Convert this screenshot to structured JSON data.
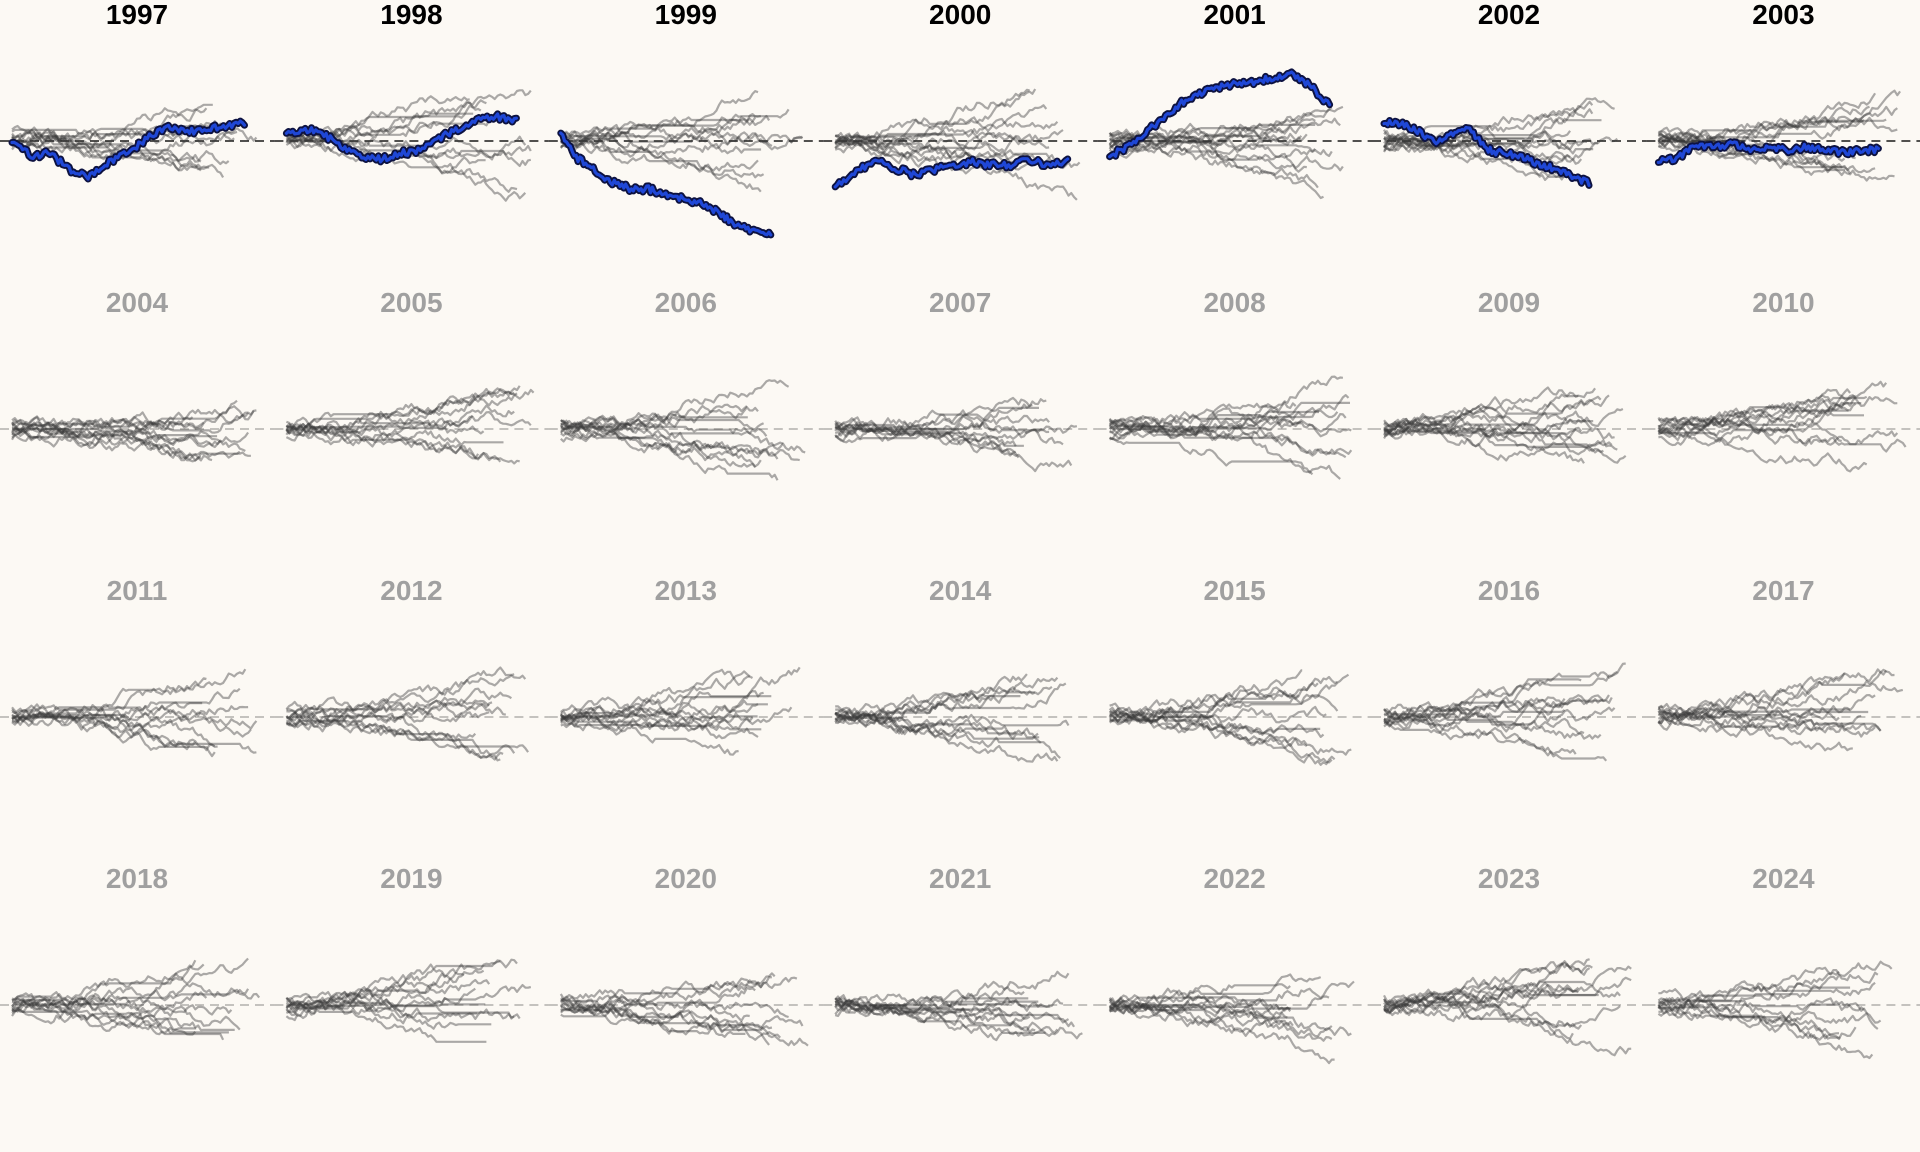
{
  "chart_data": {
    "type": "line",
    "title": "",
    "xlabel": "",
    "ylabel": "",
    "facet_rows": 4,
    "facet_cols": 7,
    "baseline_y": 0,
    "ylim": [
      -3.5,
      3.5
    ],
    "grid": false,
    "legend": "none",
    "colors": {
      "background": "#fcf9f4",
      "highlight": "#1f47d6",
      "highlight_outline": "#0d1240",
      "other_lines": "#3a3a3a",
      "active_title": "#000000",
      "inactive_title": "#a0a0a0",
      "baseline": "#000000"
    },
    "panels": [
      {
        "year": "1997",
        "active": true,
        "highlight": [
          0,
          -0.5,
          -0.4,
          -1.0,
          -1.2,
          -0.7,
          -0.4,
          0.1,
          0.5,
          0.3,
          0.4,
          0.5,
          0.6
        ],
        "hl_end": 0.93,
        "seed": 11,
        "n": 12,
        "spread": 2.0
      },
      {
        "year": "1998",
        "active": true,
        "highlight": [
          0.3,
          0.4,
          0.2,
          -0.2,
          -0.5,
          -0.6,
          -0.4,
          -0.3,
          0.1,
          0.4,
          0.7,
          0.8,
          0.7
        ],
        "hl_end": 0.92,
        "seed": 22,
        "n": 12,
        "spread": 2.6
      },
      {
        "year": "1999",
        "active": true,
        "highlight": [
          0.3,
          -0.6,
          -1.0,
          -1.4,
          -1.6,
          -1.6,
          -1.8,
          -1.9,
          -2.1,
          -2.4,
          -2.8,
          -3.0,
          -3.1
        ],
        "hl_end": 0.84,
        "seed": 33,
        "n": 12,
        "spread": 2.4
      },
      {
        "year": "2000",
        "active": true,
        "highlight": [
          -1.5,
          -1.1,
          -0.6,
          -0.9,
          -1.1,
          -1.0,
          -0.8,
          -0.7,
          -0.8,
          -0.8,
          -0.6,
          -0.8,
          -0.7
        ],
        "hl_end": 0.93,
        "seed": 44,
        "n": 13,
        "spread": 2.6
      },
      {
        "year": "2001",
        "active": true,
        "highlight": [
          -0.5,
          -0.2,
          0.3,
          0.8,
          1.3,
          1.6,
          1.8,
          1.9,
          2.0,
          2.1,
          2.2,
          1.8,
          1.2
        ],
        "hl_end": 0.88,
        "seed": 55,
        "n": 14,
        "spread": 2.4
      },
      {
        "year": "2002",
        "active": true,
        "highlight": [
          0.6,
          0.6,
          0.3,
          0.0,
          0.2,
          0.4,
          -0.3,
          -0.4,
          -0.5,
          -0.8,
          -0.9,
          -1.2,
          -1.4
        ],
        "hl_end": 0.82,
        "seed": 66,
        "n": 14,
        "spread": 2.2
      },
      {
        "year": "2003",
        "active": true,
        "highlight": [
          -0.7,
          -0.6,
          -0.1,
          -0.2,
          -0.1,
          -0.3,
          -0.2,
          -0.3,
          -0.2,
          -0.3,
          -0.4,
          -0.3,
          -0.3
        ],
        "hl_end": 0.88,
        "seed": 77,
        "n": 14,
        "spread": 2.0
      },
      {
        "year": "2004",
        "active": false,
        "highlight": [],
        "hl_end": 0.9,
        "seed": 101,
        "n": 14,
        "spread": 1.8
      },
      {
        "year": "2005",
        "active": false,
        "highlight": [],
        "hl_end": 0.9,
        "seed": 102,
        "n": 12,
        "spread": 2.0
      },
      {
        "year": "2006",
        "active": false,
        "highlight": [],
        "hl_end": 0.9,
        "seed": 103,
        "n": 13,
        "spread": 2.6
      },
      {
        "year": "2007",
        "active": false,
        "highlight": [],
        "hl_end": 0.9,
        "seed": 104,
        "n": 12,
        "spread": 2.0
      },
      {
        "year": "2008",
        "active": false,
        "highlight": [],
        "hl_end": 0.9,
        "seed": 105,
        "n": 14,
        "spread": 2.6
      },
      {
        "year": "2009",
        "active": false,
        "highlight": [],
        "hl_end": 0.9,
        "seed": 106,
        "n": 14,
        "spread": 1.8
      },
      {
        "year": "2010",
        "active": false,
        "highlight": [],
        "hl_end": 0.9,
        "seed": 107,
        "n": 13,
        "spread": 2.0
      },
      {
        "year": "2011",
        "active": false,
        "highlight": [],
        "hl_end": 0.9,
        "seed": 108,
        "n": 12,
        "spread": 2.4
      },
      {
        "year": "2012",
        "active": false,
        "highlight": [],
        "hl_end": 0.9,
        "seed": 109,
        "n": 12,
        "spread": 2.4
      },
      {
        "year": "2013",
        "active": false,
        "highlight": [],
        "hl_end": 0.9,
        "seed": 110,
        "n": 13,
        "spread": 2.0
      },
      {
        "year": "2014",
        "active": false,
        "highlight": [],
        "hl_end": 0.9,
        "seed": 111,
        "n": 13,
        "spread": 2.0
      },
      {
        "year": "2015",
        "active": false,
        "highlight": [],
        "hl_end": 0.9,
        "seed": 112,
        "n": 13,
        "spread": 2.0
      },
      {
        "year": "2016",
        "active": false,
        "highlight": [],
        "hl_end": 0.9,
        "seed": 113,
        "n": 13,
        "spread": 2.2
      },
      {
        "year": "2017",
        "active": false,
        "highlight": [],
        "hl_end": 0.9,
        "seed": 114,
        "n": 13,
        "spread": 2.2
      },
      {
        "year": "2018",
        "active": false,
        "highlight": [],
        "hl_end": 0.9,
        "seed": 115,
        "n": 13,
        "spread": 2.2
      },
      {
        "year": "2019",
        "active": false,
        "highlight": [],
        "hl_end": 0.9,
        "seed": 116,
        "n": 13,
        "spread": 2.2
      },
      {
        "year": "2020",
        "active": false,
        "highlight": [],
        "hl_end": 0.9,
        "seed": 117,
        "n": 12,
        "spread": 2.4
      },
      {
        "year": "2021",
        "active": false,
        "highlight": [],
        "hl_end": 0.9,
        "seed": 118,
        "n": 13,
        "spread": 2.4
      },
      {
        "year": "2022",
        "active": false,
        "highlight": [],
        "hl_end": 0.9,
        "seed": 119,
        "n": 13,
        "spread": 2.4
      },
      {
        "year": "2023",
        "active": false,
        "highlight": [],
        "hl_end": 0.9,
        "seed": 120,
        "n": 13,
        "spread": 2.4
      },
      {
        "year": "2024",
        "active": false,
        "highlight": [],
        "hl_end": 0.9,
        "seed": 121,
        "n": 12,
        "spread": 2.2
      }
    ]
  }
}
